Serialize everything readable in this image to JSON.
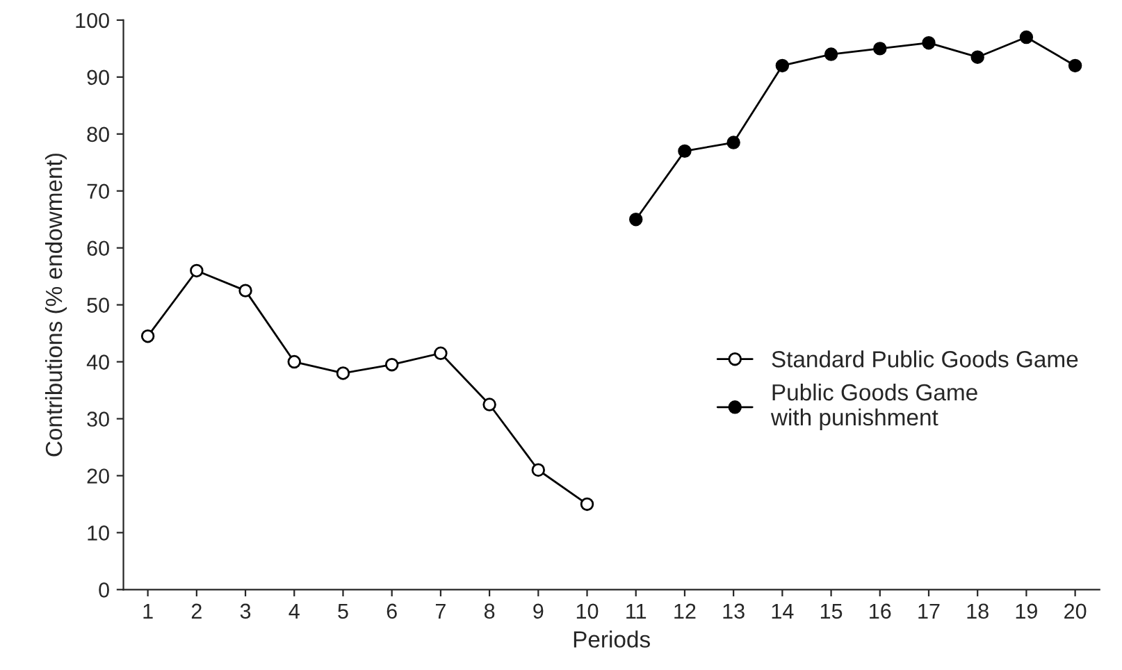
{
  "chart_data": {
    "type": "line",
    "xlabel": "Periods",
    "ylabel": "Contributions (% endowment)",
    "x": [
      1,
      2,
      3,
      4,
      5,
      6,
      7,
      8,
      9,
      10,
      11,
      12,
      13,
      14,
      15,
      16,
      17,
      18,
      19,
      20
    ],
    "series": [
      {
        "name": "Standard Public Goods Game",
        "color": "#000000",
        "values": [
          44.5,
          56,
          52.5,
          40,
          38,
          39.5,
          41.5,
          32.5,
          21,
          15,
          null,
          null,
          null,
          null,
          null,
          null,
          null,
          null,
          null,
          null
        ]
      },
      {
        "name": "Public Goods Game\nwith punishment",
        "color": "#000000",
        "values": [
          null,
          null,
          null,
          null,
          null,
          null,
          null,
          null,
          null,
          null,
          65,
          77,
          78.5,
          92,
          94,
          95,
          96,
          93.5,
          97,
          92
        ]
      }
    ],
    "xlim": [
      0.5,
      20.5
    ],
    "xticks": [
      1,
      2,
      3,
      4,
      5,
      6,
      7,
      8,
      9,
      10,
      11,
      12,
      13,
      14,
      15,
      16,
      17,
      18,
      19,
      20
    ],
    "ylim": [
      0,
      100
    ],
    "yticks": [
      0,
      10,
      20,
      30,
      40,
      50,
      60,
      70,
      80,
      90,
      100
    ],
    "marker": "circle",
    "line_style": "solid",
    "grid": false,
    "legend": "right"
  }
}
